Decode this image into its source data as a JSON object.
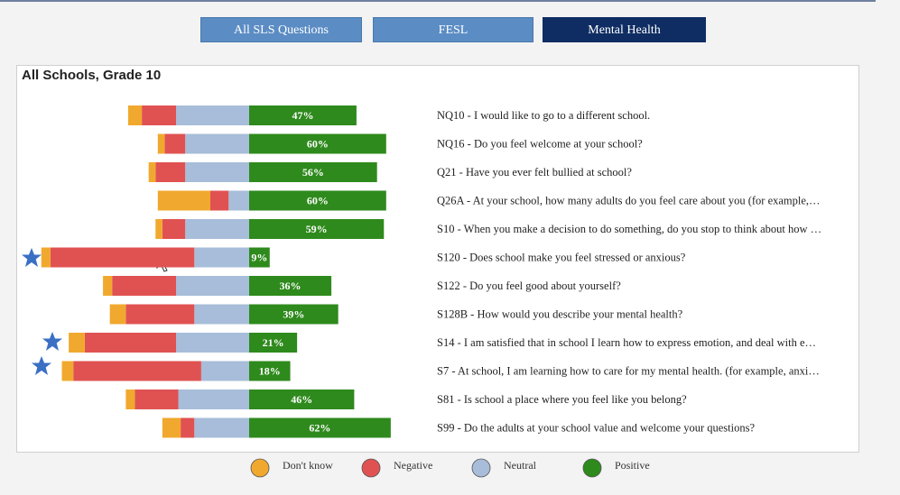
{
  "tabs": [
    "All SLS Questions",
    "FESL",
    "Mental Health"
  ],
  "chart_data": {
    "type": "diverging_bar",
    "title": "All Schools, Grade 10",
    "categories": [
      "NQ10 - I would like to go to a different school.",
      "NQ16 - Do you feel welcome at your school?",
      "Q21 - Have you ever felt bullied at school?",
      "Q26A - At your school, how many adults do you feel care about you (for example,…",
      "S10 - When you make a decision to do something, do you stop to think about how …",
      "S120 - Does school make you feel stressed or anxious?",
      "S122 - Do you feel good about yourself?",
      "S128B - How would you describe your mental health?",
      "S14 - I am satisfied that in school I learn how to express emotion, and deal with e…",
      "S7 - At school, I am learning how to care for my mental health. (for example, anxi…",
      "S81 - Is school a place where you feel like you belong?",
      "S99 - Do the adults at your school value and welcome your questions?"
    ],
    "series": [
      {
        "name": "Don't know",
        "color": "#f0a92e",
        "values": [
          6,
          3,
          3,
          23,
          3,
          4,
          4,
          7,
          7,
          5,
          4,
          8
        ]
      },
      {
        "name": "Negative",
        "color": "#e05252",
        "values": [
          15,
          9,
          13,
          8,
          10,
          63,
          28,
          30,
          40,
          56,
          19,
          6
        ]
      },
      {
        "name": "Neutral",
        "color": "#a7bdd9",
        "values": [
          32,
          28,
          28,
          9,
          28,
          24,
          32,
          24,
          32,
          21,
          31,
          24
        ]
      },
      {
        "name": "Positive",
        "color": "#2e8a1c",
        "values": [
          47,
          60,
          56,
          60,
          59,
          9,
          36,
          39,
          21,
          18,
          46,
          62
        ],
        "value_labels": [
          "47%",
          "60%",
          "56%",
          "60%",
          "59%",
          "9%",
          "36%",
          "39%",
          "21%",
          "18%",
          "46%",
          "62%"
        ]
      }
    ]
  }
}
